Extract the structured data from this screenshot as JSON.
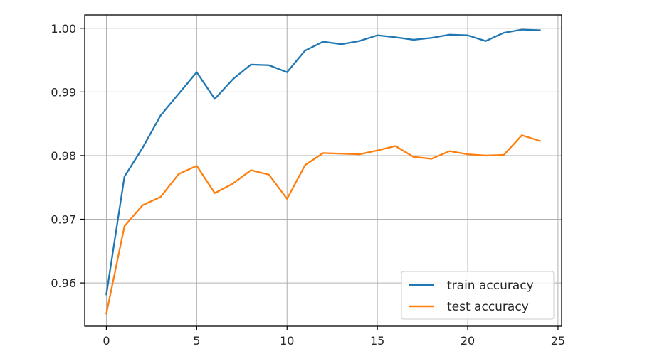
{
  "chart_data": {
    "type": "line",
    "title": "",
    "xlabel": "",
    "ylabel": "",
    "xlim": [
      -1.2,
      25.2
    ],
    "ylim": [
      0.9532,
      1.0021
    ],
    "grid": true,
    "legend_position": "lower-right",
    "x_ticks": [
      0,
      5,
      10,
      15,
      20,
      25
    ],
    "x_tick_labels": [
      "0",
      "5",
      "10",
      "15",
      "20",
      "25"
    ],
    "y_ticks": [
      0.96,
      0.97,
      0.98,
      0.99,
      1.0
    ],
    "y_tick_labels": [
      "0.96",
      "0.97",
      "0.98",
      "0.99",
      "1.00"
    ],
    "x": [
      0,
      1,
      2,
      3,
      4,
      5,
      6,
      7,
      8,
      9,
      10,
      11,
      12,
      13,
      14,
      15,
      16,
      17,
      18,
      19,
      20,
      21,
      22,
      23,
      24
    ],
    "series": [
      {
        "name": "train accuracy",
        "color": "#1f77b4",
        "values": [
          0.9582,
          0.9767,
          0.9812,
          0.9863,
          0.9897,
          0.9931,
          0.9889,
          0.992,
          0.9943,
          0.9942,
          0.9931,
          0.9965,
          0.9979,
          0.9975,
          0.998,
          0.9989,
          0.9986,
          0.9982,
          0.9985,
          0.999,
          0.9989,
          0.998,
          0.9993,
          0.9998,
          0.9997
        ]
      },
      {
        "name": "test accuracy",
        "color": "#ff7f0e",
        "values": [
          0.9552,
          0.9689,
          0.9722,
          0.9735,
          0.9771,
          0.9784,
          0.9741,
          0.9756,
          0.9777,
          0.977,
          0.9732,
          0.9785,
          0.9804,
          0.9803,
          0.9802,
          0.9808,
          0.9815,
          0.9798,
          0.9795,
          0.9807,
          0.9802,
          0.98,
          0.9801,
          0.9832,
          0.9823
        ]
      }
    ]
  }
}
